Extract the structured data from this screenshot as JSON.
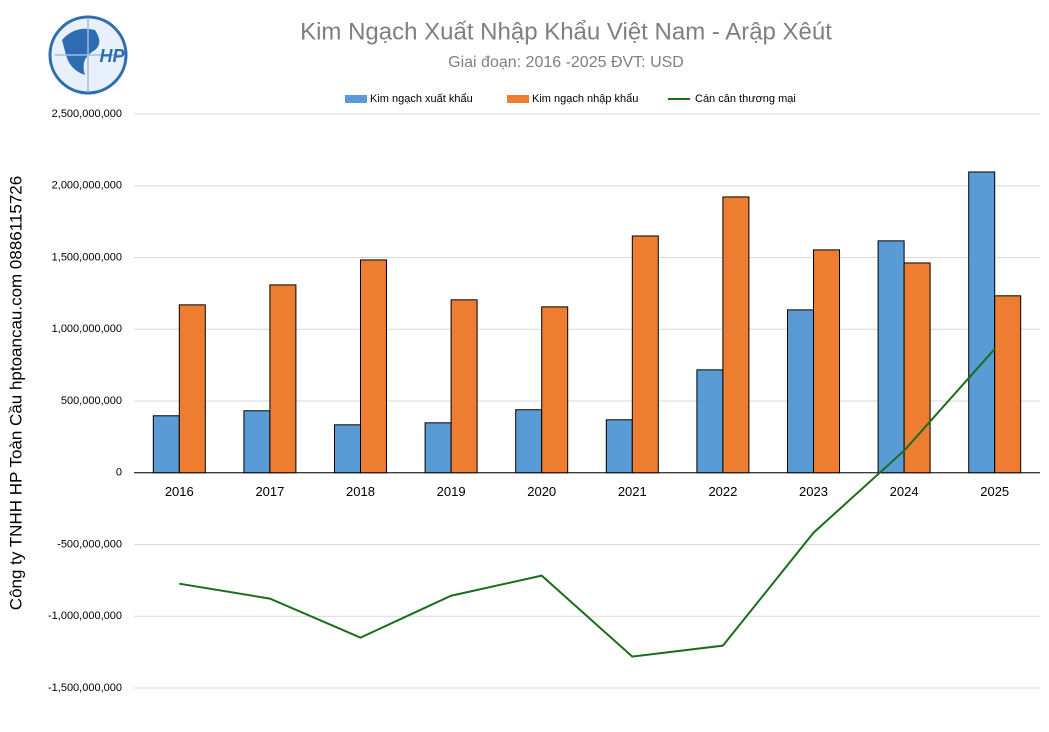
{
  "logo": {
    "text": "HP"
  },
  "chart_data": {
    "type": "bar",
    "title": "Kim Ngạch Xuất Nhập Khẩu Việt Nam - Arập Xêút",
    "subtitle": "Giai đoạn: 2016 -2025  ĐVT: USD",
    "ylabel": "Công ty TNHH HP Toàn Cầu hptoancau.com 0886115726",
    "categories": [
      "2016",
      "2017",
      "2018",
      "2019",
      "2020",
      "2021",
      "2022",
      "2023",
      "2024",
      "2025"
    ],
    "series": [
      {
        "name": "Kim ngạch xuất khẩu",
        "type": "bar",
        "color": "#5b9bd5",
        "values": [
          397000000,
          432000000,
          334000000,
          348000000,
          439000000,
          369000000,
          717000000,
          1135000000,
          1616000000,
          2096000000
        ]
      },
      {
        "name": "Kim ngạch nhập khẩu",
        "type": "bar",
        "color": "#ed7d31",
        "values": [
          1170000000,
          1309000000,
          1483000000,
          1205000000,
          1156000000,
          1650000000,
          1922000000,
          1553000000,
          1462000000,
          1233000000
        ]
      },
      {
        "name": "Cán cân thương mại",
        "type": "line",
        "color": "#1a6e1a",
        "values": [
          -773000000,
          -877000000,
          -1149000000,
          -857000000,
          -717000000,
          -1281000000,
          -1205000000,
          -418000000,
          154000000,
          863000000
        ]
      }
    ],
    "ylim": [
      -1500000000,
      2500000000
    ],
    "yticks": [
      {
        "value": -1500000000,
        "label": "-1,500,000,000"
      },
      {
        "value": -1000000000,
        "label": "-1,000,000,000"
      },
      {
        "value": -500000000,
        "label": "-500,000,000"
      },
      0,
      {
        "value": 500000000,
        "label": "500,000,000"
      },
      {
        "value": 1000000000,
        "label": "1,000,000,000"
      },
      {
        "value": 1500000000,
        "label": "1,500,000,000"
      },
      {
        "value": 2000000000,
        "label": "2,000,000,000"
      },
      {
        "value": 2500000000,
        "label": "2,500,000,000"
      }
    ],
    "grid": true,
    "legend": "top"
  }
}
